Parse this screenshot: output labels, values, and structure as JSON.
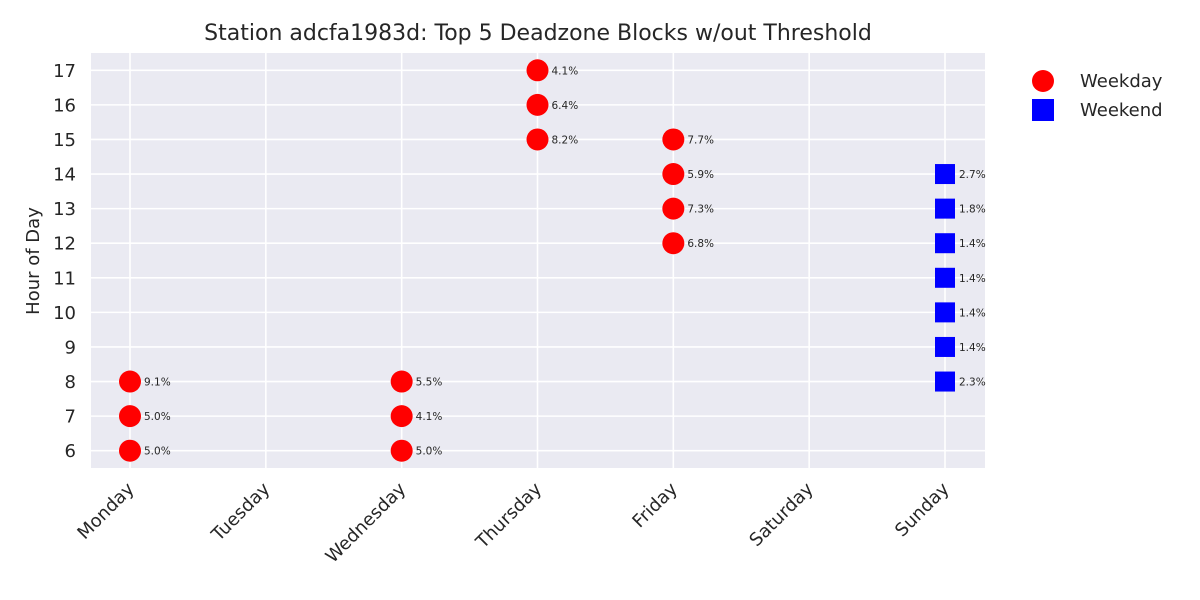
{
  "chart_data": {
    "type": "scatter",
    "title": "Station adcfa1983d: Top 5 Deadzone Blocks w/out Threshold",
    "xlabel": "",
    "ylabel": "Hour of Day",
    "categories": [
      "Monday",
      "Tuesday",
      "Wednesday",
      "Thursday",
      "Friday",
      "Saturday",
      "Sunday"
    ],
    "yticks": [
      6,
      7,
      8,
      9,
      10,
      11,
      12,
      13,
      14,
      15,
      16,
      17
    ],
    "ylim": [
      5.5,
      17.5
    ],
    "grid": true,
    "legend_position": "outside-top-right",
    "series": [
      {
        "name": "Weekday",
        "marker": "circle",
        "color": "#ff0000",
        "points": [
          {
            "x": "Monday",
            "y": 8,
            "label": "9.1%"
          },
          {
            "x": "Monday",
            "y": 7,
            "label": "5.0%"
          },
          {
            "x": "Monday",
            "y": 6,
            "label": "5.0%"
          },
          {
            "x": "Wednesday",
            "y": 8,
            "label": "5.5%"
          },
          {
            "x": "Wednesday",
            "y": 7,
            "label": "4.1%"
          },
          {
            "x": "Wednesday",
            "y": 6,
            "label": "5.0%"
          },
          {
            "x": "Thursday",
            "y": 17,
            "label": "4.1%"
          },
          {
            "x": "Thursday",
            "y": 16,
            "label": "6.4%"
          },
          {
            "x": "Thursday",
            "y": 15,
            "label": "8.2%"
          },
          {
            "x": "Friday",
            "y": 15,
            "label": "7.7%"
          },
          {
            "x": "Friday",
            "y": 14,
            "label": "5.9%"
          },
          {
            "x": "Friday",
            "y": 13,
            "label": "7.3%"
          },
          {
            "x": "Friday",
            "y": 12,
            "label": "6.8%"
          }
        ]
      },
      {
        "name": "Weekend",
        "marker": "square",
        "color": "#0000ff",
        "points": [
          {
            "x": "Sunday",
            "y": 14,
            "label": "2.7%"
          },
          {
            "x": "Sunday",
            "y": 13,
            "label": "1.8%"
          },
          {
            "x": "Sunday",
            "y": 12,
            "label": "1.4%"
          },
          {
            "x": "Sunday",
            "y": 11,
            "label": "1.4%"
          },
          {
            "x": "Sunday",
            "y": 10,
            "label": "1.4%"
          },
          {
            "x": "Sunday",
            "y": 9,
            "label": "1.4%"
          },
          {
            "x": "Sunday",
            "y": 8,
            "label": "2.3%"
          }
        ]
      }
    ],
    "colors": {
      "plot_background": "#eaeaf2",
      "grid": "#ffffff"
    }
  }
}
